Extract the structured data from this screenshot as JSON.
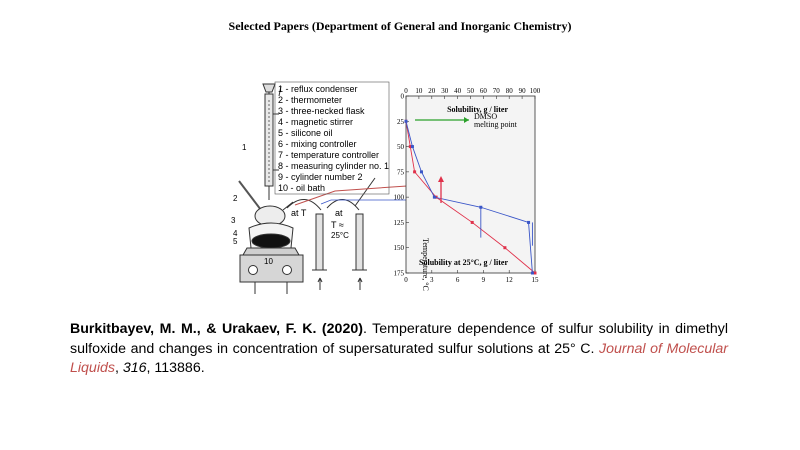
{
  "header": {
    "title": "Selected Papers (Department  of General and Inorganic  Chemistry)"
  },
  "figure": {
    "legend": [
      "1 - reflux condenser",
      "2 - thermometer",
      "3 - three-necked flask",
      "4 - magnetic stirrer",
      "5 - silicone oil",
      "6 - mixing controller",
      "7 - temperature controller",
      "8 - measuring cylinder no. 1",
      "9 - cylinder number 2",
      "10 - oil bath"
    ],
    "apparatus_labels": {
      "n1": "1",
      "n2": "2",
      "n3": "3",
      "n4": "4",
      "n5": "5",
      "n10": "10",
      "at_t": "at T",
      "at": "at",
      "t_approx": "T ≈",
      "temp_25": "25°C"
    },
    "chart": {
      "top_axis_title": "Solubility,  g / liter",
      "top_ticks": [
        "0",
        "10",
        "20",
        "30",
        "40",
        "50",
        "60",
        "70",
        "80",
        "90",
        "100"
      ],
      "bottom_axis_title": "Solubility at 25°C,  g / liter",
      "bottom_ticks": [
        "0",
        "3",
        "6",
        "9",
        "12",
        "15"
      ],
      "left_axis_title": "Temperature,  °C",
      "left_ticks": [
        "0",
        "25",
        "50",
        "75",
        "100",
        "125",
        "150",
        "175"
      ],
      "annotation": "DMSO melting point",
      "annotation_line1": "DMSO",
      "annotation_line2": "melting point"
    }
  },
  "chart_data": {
    "type": "line",
    "ylabel": "Temperature,  °C",
    "ylim": [
      175,
      0
    ],
    "x_top": {
      "label": "Solubility,  g / liter",
      "lim": [
        0,
        100
      ]
    },
    "x_bottom": {
      "label": "Solubility at 25°C,  g / liter",
      "lim": [
        0,
        15
      ]
    },
    "series": [
      {
        "color": "#e0314a",
        "axis": "bottom",
        "points": [
          [
            0,
            25
          ],
          [
            0.5,
            50
          ],
          [
            1.0,
            75
          ],
          [
            3.5,
            100
          ],
          [
            7.7,
            125
          ],
          [
            11.5,
            150
          ],
          [
            15,
            175
          ]
        ]
      },
      {
        "color": "#3a56c8",
        "axis": "top",
        "points": [
          [
            0,
            25
          ],
          [
            5,
            50
          ],
          [
            12,
            75
          ],
          [
            22,
            100
          ],
          [
            58,
            110
          ],
          [
            95,
            125
          ],
          [
            98,
            175
          ]
        ]
      }
    ],
    "annotation": {
      "text": "DMSO melting point",
      "y": 25,
      "color": "#2aa02a"
    }
  },
  "citation": {
    "authors": "Burkitbayev, M. M., & Urakaev, F. K. (2020)",
    "title": ". Temperature dependence of sulfur solubility in dimethyl sulfoxide and changes in concentration of supersaturated sulfur solutions at 25° C. ",
    "journal": "Journal of Molecular Liquids",
    "sep1": ", ",
    "volume": "316",
    "rest": ", 113886."
  }
}
